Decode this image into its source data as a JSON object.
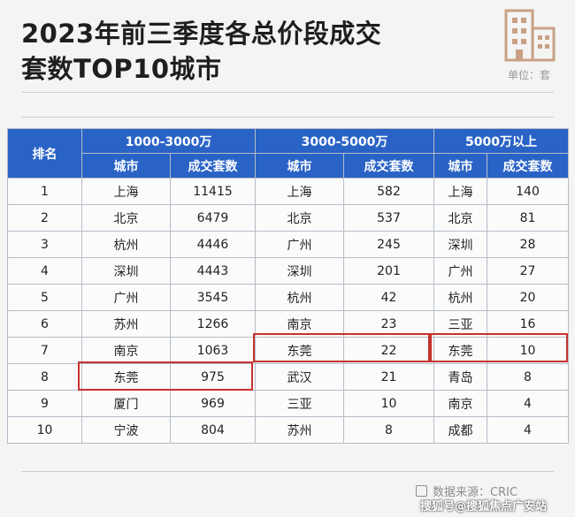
{
  "title": {
    "line1": "2023年前三季度各总价段成交",
    "line2": "套数TOP10城市"
  },
  "unit": "单位：套",
  "table": {
    "group_headers": [
      "1000-3000万",
      "3000-5000万",
      "5000万以上"
    ],
    "rank_header": "排名",
    "sub_headers": [
      "城市",
      "成交套数",
      "城市",
      "成交套数",
      "城市",
      "成交套数"
    ],
    "rows": [
      [
        "1",
        "上海",
        "11415",
        "上海",
        "582",
        "上海",
        "140"
      ],
      [
        "2",
        "北京",
        "6479",
        "北京",
        "537",
        "北京",
        "81"
      ],
      [
        "3",
        "杭州",
        "4446",
        "广州",
        "245",
        "深圳",
        "28"
      ],
      [
        "4",
        "深圳",
        "4443",
        "深圳",
        "201",
        "广州",
        "27"
      ],
      [
        "5",
        "广州",
        "3545",
        "杭州",
        "42",
        "杭州",
        "20"
      ],
      [
        "6",
        "苏州",
        "1266",
        "南京",
        "23",
        "三亚",
        "16"
      ],
      [
        "7",
        "南京",
        "1063",
        "东莞",
        "22",
        "东莞",
        "10"
      ],
      [
        "8",
        "东莞",
        "975",
        "武汉",
        "21",
        "青岛",
        "8"
      ],
      [
        "9",
        "厦门",
        "969",
        "三亚",
        "10",
        "南京",
        "4"
      ],
      [
        "10",
        "宁波",
        "804",
        "苏州",
        "8",
        "成都",
        "4"
      ]
    ]
  },
  "highlight_color": "#c8312d",
  "header_color": "#2a63c6",
  "source": "数据来源：CRIC",
  "watermark": "搜狐号@搜狐焦点广安站",
  "logo_icon": "building-icon"
}
